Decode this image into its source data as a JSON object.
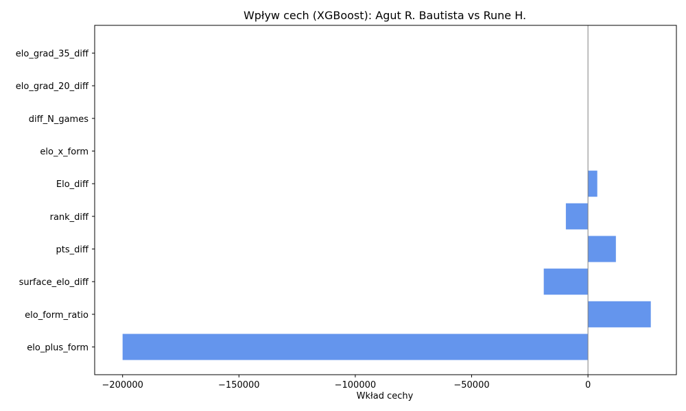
{
  "chart_data": {
    "type": "bar",
    "orientation": "horizontal",
    "title": "Wpływ cech (XGBoost): Agut R. Bautista vs Rune H.",
    "xlabel": "Wkład cechy",
    "ylabel": "",
    "categories": [
      "elo_plus_form",
      "elo_form_ratio",
      "surface_elo_diff",
      "pts_diff",
      "rank_diff",
      "Elo_diff",
      "elo_x_form",
      "diff_N_games",
      "elo_grad_20_diff",
      "elo_grad_35_diff"
    ],
    "values": [
      -200000,
      27000,
      -19000,
      12000,
      -9500,
      4000,
      0,
      0,
      0,
      0
    ],
    "xlim": [
      -212000,
      38000
    ],
    "xticks": [
      -200000,
      -150000,
      -100000,
      -50000,
      0
    ],
    "xtick_labels": [
      "−200000",
      "−150000",
      "−100000",
      "−50000",
      "0"
    ],
    "zero_line": true,
    "grid": false,
    "legend": "none",
    "colors": {
      "bar": "#6495ed",
      "zero_line": "#808080",
      "axes": "#000000",
      "text": "#000000"
    }
  }
}
